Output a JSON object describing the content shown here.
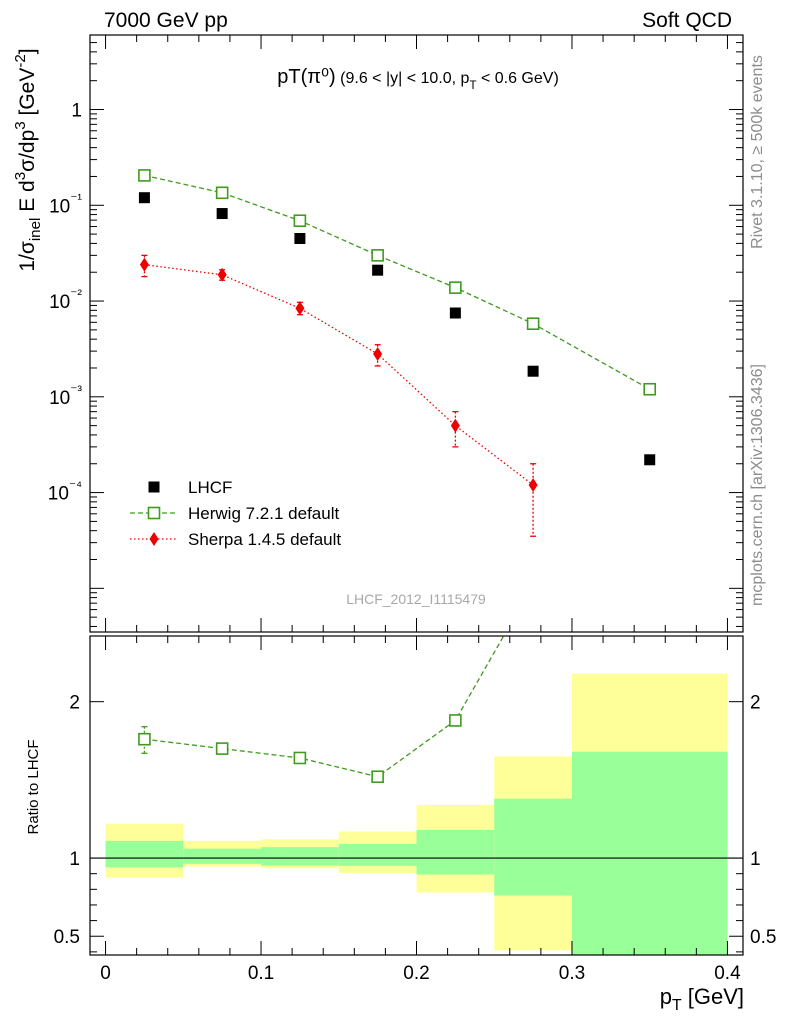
{
  "header": {
    "left": "7000 GeV pp",
    "right": "Soft QCD"
  },
  "side_notes": {
    "rivet": "Rivet 3.1.10, ≥ 500k events",
    "mcplots": "mcplots.cern.ch [arXiv:1306.3436]"
  },
  "chart_data": [
    {
      "type": "scatter",
      "panel": "main",
      "title": "pT(π⁰) (9.6 < |y| < 10.0, p_T < 0.6 GeV)",
      "ylabel": "1/σ_inel E d³σ/dp³ [GeV⁻²]",
      "yscale": "log",
      "xlim": [
        -0.01,
        0.41
      ],
      "ylim": [
        3.5e-06,
        6.0
      ],
      "x_ticks": [
        0,
        0.1,
        0.2,
        0.3,
        0.4
      ],
      "y_tick_labels": [
        {
          "value": 1,
          "label": "1"
        },
        {
          "value": 0.1,
          "label": "10⁻¹"
        },
        {
          "value": 0.01,
          "label": "10⁻²"
        },
        {
          "value": 0.001,
          "label": "10⁻³"
        },
        {
          "value": 0.0001,
          "label": "10⁻⁴"
        }
      ],
      "analysis_label": "LHCF_2012_I1115479",
      "legend_position": "bottom-left",
      "series": [
        {
          "name": "LHCF",
          "style": "data",
          "color": "#000000",
          "x": [
            0.025,
            0.075,
            0.125,
            0.175,
            0.225,
            0.275,
            0.35
          ],
          "y": [
            0.12,
            0.082,
            0.045,
            0.021,
            0.0075,
            0.00185,
            0.00022
          ]
        },
        {
          "name": "Herwig 7.2.1 default",
          "style": "open-square-dashed",
          "color": "#3f9a1f",
          "x": [
            0.025,
            0.075,
            0.125,
            0.175,
            0.225,
            0.275,
            0.35
          ],
          "y": [
            0.205,
            0.135,
            0.069,
            0.03,
            0.0138,
            0.0058,
            0.0012
          ]
        },
        {
          "name": "Sherpa 1.4.5 default",
          "style": "diamond-dotted",
          "color": "#ee0000",
          "x": [
            0.025,
            0.075,
            0.125,
            0.175,
            0.225,
            0.275
          ],
          "y": [
            0.024,
            0.0188,
            0.0084,
            0.0028,
            0.0005,
            0.00012
          ],
          "y_lo": [
            0.018,
            0.0165,
            0.0072,
            0.0021,
            0.0003,
            3.5e-05
          ],
          "y_hi": [
            0.03,
            0.0212,
            0.0097,
            0.0035,
            0.0007,
            0.0002
          ]
        }
      ]
    },
    {
      "type": "line",
      "panel": "ratio",
      "xlabel": "p_T [GeV]",
      "ylabel": "Ratio to LHCF",
      "xlim": [
        -0.01,
        0.41
      ],
      "ylim": [
        0.38,
        2.42
      ],
      "x_ticks": [
        0,
        0.1,
        0.2,
        0.3,
        0.4
      ],
      "x_tick_labels": [
        "0",
        "0.1",
        "0.2",
        "0.3",
        "0.4"
      ],
      "y_ticks": [
        0.5,
        1,
        2
      ],
      "y_tick_labels": [
        "0.5",
        "1",
        "2"
      ],
      "uncertainty_bands": {
        "bin_edges": [
          0,
          0.05,
          0.1,
          0.15,
          0.2,
          0.25,
          0.3,
          0.4
        ],
        "total_lo": [
          0.875,
          0.945,
          0.935,
          0.905,
          0.78,
          0.41,
          0.38
        ],
        "total_hi": [
          1.22,
          1.11,
          1.12,
          1.17,
          1.34,
          1.65,
          2.18
        ],
        "stat_lo": [
          0.94,
          0.963,
          0.952,
          0.95,
          0.895,
          0.76,
          0.38
        ],
        "stat_hi": [
          1.11,
          1.06,
          1.07,
          1.09,
          1.18,
          1.38,
          1.68
        ],
        "total_color": "#ffff99",
        "stat_color": "#99ff99"
      },
      "reference_line": 1,
      "series": [
        {
          "name": "Herwig 7.2.1 default / LHCF",
          "color": "#3f9a1f",
          "x": [
            0.025,
            0.075,
            0.125,
            0.175,
            0.225
          ],
          "y": [
            1.76,
            1.7,
            1.64,
            1.52,
            1.88
          ],
          "y_lo": [
            1.67,
            null,
            null,
            null,
            null
          ],
          "y_hi": [
            1.84,
            null,
            null,
            null,
            null
          ],
          "exits_top_toward_x": 0.275
        }
      ]
    }
  ]
}
